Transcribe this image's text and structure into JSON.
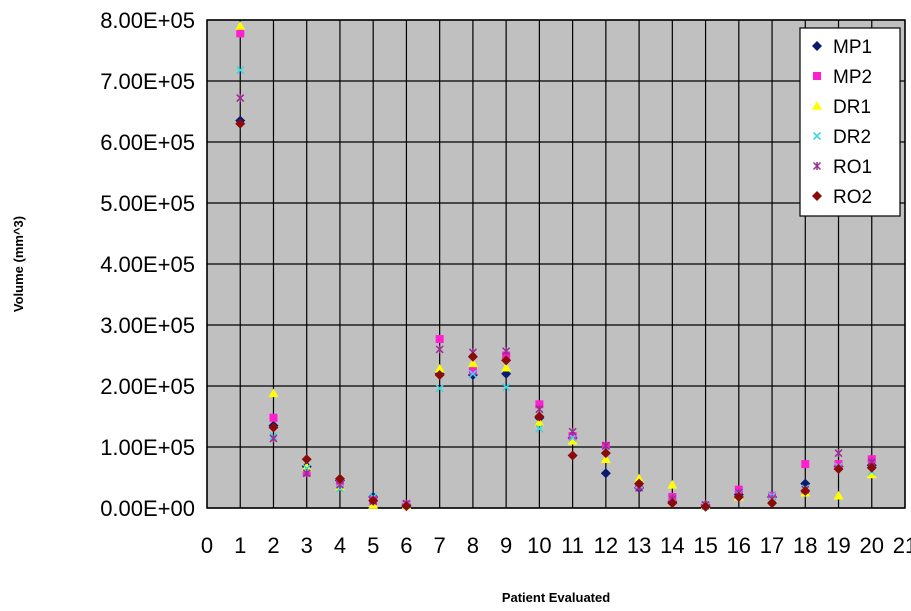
{
  "chart_data": {
    "type": "scatter",
    "title": "",
    "xlabel": "Patient Evaluated",
    "ylabel": "Volume (mm^3)",
    "xlim": [
      0,
      21
    ],
    "ylim": [
      0,
      800000
    ],
    "x_ticks": [
      "0",
      "1",
      "2",
      "3",
      "4",
      "5",
      "6",
      "7",
      "8",
      "9",
      "10",
      "11",
      "12",
      "13",
      "14",
      "15",
      "16",
      "17",
      "18",
      "19",
      "20",
      "21"
    ],
    "y_ticks": [
      "0.00E+00",
      "1.00E+05",
      "2.00E+05",
      "3.00E+05",
      "4.00E+05",
      "5.00E+05",
      "6.00E+05",
      "7.00E+05",
      "8.00E+05"
    ],
    "grid": true,
    "legend_position": "top-right",
    "x": [
      1,
      2,
      3,
      4,
      5,
      6,
      7,
      8,
      9,
      10,
      11,
      12,
      13,
      14,
      15,
      16,
      17,
      18,
      19,
      20
    ],
    "series": [
      {
        "name": "MP1",
        "marker": "diamond",
        "color": "#0a1a6e",
        "values": [
          635000,
          135000,
          68000,
          45000,
          18000,
          5000,
          220000,
          218000,
          220000,
          148000,
          115000,
          57000,
          33000,
          10000,
          5000,
          22000,
          18000,
          40000,
          68000,
          70000
        ]
      },
      {
        "name": "MP2",
        "marker": "square",
        "color": "#ff1fd0",
        "values": [
          778000,
          148000,
          58000,
          42000,
          13000,
          6000,
          277000,
          225000,
          250000,
          170000,
          118000,
          102000,
          38000,
          18000,
          4000,
          30000,
          20000,
          72000,
          72000,
          80000
        ]
      },
      {
        "name": "DR1",
        "marker": "triangle",
        "color": "#ffff00",
        "values": [
          790000,
          188000,
          67000,
          35000,
          5000,
          4000,
          228000,
          237000,
          230000,
          140000,
          110000,
          80000,
          48000,
          38000,
          4000,
          18000,
          12000,
          25000,
          20000,
          55000
        ]
      },
      {
        "name": "DR2",
        "marker": "x",
        "color": "#3cd6e6",
        "values": [
          718000,
          118000,
          65000,
          32000,
          18000,
          5000,
          196000,
          220000,
          198000,
          130000,
          115000,
          93000,
          38000,
          15000,
          3000,
          24000,
          20000,
          32000,
          68000,
          60000
        ]
      },
      {
        "name": "RO1",
        "marker": "star",
        "color": "#9b2d8f",
        "values": [
          672000,
          114000,
          57000,
          38000,
          11000,
          7000,
          260000,
          255000,
          257000,
          162000,
          125000,
          102000,
          33000,
          15000,
          5000,
          25000,
          15000,
          30000,
          90000,
          75000
        ]
      },
      {
        "name": "RO2",
        "marker": "diamond",
        "color": "#8b0a0a",
        "values": [
          630000,
          132000,
          80000,
          48000,
          12000,
          3000,
          218000,
          248000,
          242000,
          150000,
          86000,
          90000,
          40000,
          8000,
          2000,
          18000,
          8000,
          28000,
          64000,
          66000
        ]
      }
    ]
  }
}
